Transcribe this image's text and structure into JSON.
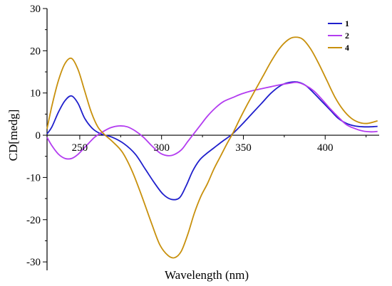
{
  "chart_data": {
    "type": "line",
    "xlabel": "Wavelength (nm)",
    "ylabel": "CD[medg]",
    "xlim": [
      230,
      433
    ],
    "ylim": [
      -32,
      30
    ],
    "x_ticks": [
      250,
      300,
      350,
      400
    ],
    "y_ticks": [
      -30,
      -20,
      -10,
      0,
      10,
      20,
      30
    ],
    "x_tick_labels": [
      "250",
      "300",
      "350",
      "400"
    ],
    "y_tick_labels": [
      "-30",
      "-20",
      "-10",
      "0",
      "10",
      "20",
      "30"
    ],
    "grid": false,
    "legend_position": "top-right",
    "series": [
      {
        "name": "1",
        "color": "#1f1fcc",
        "points": [
          [
            230,
            0.3
          ],
          [
            233,
            2
          ],
          [
            237,
            5.5
          ],
          [
            241,
            8.2
          ],
          [
            245,
            9.3
          ],
          [
            249,
            7.5
          ],
          [
            253,
            4.0
          ],
          [
            258,
            1.5
          ],
          [
            263,
            0.3
          ],
          [
            270,
            -0.5
          ],
          [
            277,
            -2.0
          ],
          [
            284,
            -4.5
          ],
          [
            290,
            -8.0
          ],
          [
            296,
            -11.5
          ],
          [
            301,
            -14.0
          ],
          [
            306,
            -15.2
          ],
          [
            311,
            -14.8
          ],
          [
            315,
            -12.0
          ],
          [
            319,
            -8.5
          ],
          [
            323,
            -6.0
          ],
          [
            327,
            -4.5
          ],
          [
            332,
            -3.0
          ],
          [
            337,
            -1.5
          ],
          [
            343,
            0.2
          ],
          [
            349,
            2.5
          ],
          [
            355,
            5.0
          ],
          [
            361,
            7.5
          ],
          [
            367,
            10.0
          ],
          [
            373,
            11.8
          ],
          [
            378,
            12.5
          ],
          [
            383,
            12.6
          ],
          [
            388,
            11.8
          ],
          [
            393,
            10.0
          ],
          [
            398,
            8.0
          ],
          [
            403,
            6.0
          ],
          [
            408,
            4.0
          ],
          [
            413,
            2.8
          ],
          [
            418,
            2.2
          ],
          [
            423,
            2.0
          ],
          [
            428,
            2.0
          ],
          [
            432,
            2.1
          ]
        ]
      },
      {
        "name": "2",
        "color": "#b33cf0",
        "points": [
          [
            230,
            -0.5
          ],
          [
            233,
            -2.5
          ],
          [
            237,
            -4.5
          ],
          [
            241,
            -5.5
          ],
          [
            245,
            -5.5
          ],
          [
            249,
            -4.5
          ],
          [
            254,
            -2.5
          ],
          [
            259,
            -0.5
          ],
          [
            264,
            0.8
          ],
          [
            269,
            1.8
          ],
          [
            274,
            2.2
          ],
          [
            279,
            2.0
          ],
          [
            284,
            1.0
          ],
          [
            289,
            -0.5
          ],
          [
            294,
            -2.5
          ],
          [
            299,
            -4.2
          ],
          [
            303,
            -4.8
          ],
          [
            307,
            -4.7
          ],
          [
            312,
            -3.5
          ],
          [
            316,
            -1.5
          ],
          [
            320,
            0.5
          ],
          [
            324,
            2.5
          ],
          [
            328,
            4.5
          ],
          [
            333,
            6.5
          ],
          [
            338,
            8.0
          ],
          [
            344,
            9.0
          ],
          [
            349,
            9.8
          ],
          [
            355,
            10.5
          ],
          [
            361,
            11.0
          ],
          [
            367,
            11.5
          ],
          [
            373,
            12.0
          ],
          [
            378,
            12.3
          ],
          [
            383,
            12.5
          ],
          [
            388,
            11.8
          ],
          [
            393,
            10.5
          ],
          [
            398,
            8.5
          ],
          [
            403,
            6.3
          ],
          [
            408,
            4.3
          ],
          [
            413,
            2.5
          ],
          [
            418,
            1.6
          ],
          [
            423,
            1.0
          ],
          [
            428,
            0.8
          ],
          [
            432,
            0.9
          ]
        ]
      },
      {
        "name": "4",
        "color": "#c8900c",
        "points": [
          [
            230,
            1.5
          ],
          [
            233,
            7
          ],
          [
            237,
            13
          ],
          [
            241,
            17
          ],
          [
            245,
            18.2
          ],
          [
            249,
            15.5
          ],
          [
            253,
            10.5
          ],
          [
            257,
            5.5
          ],
          [
            261,
            2.0
          ],
          [
            265,
            0.2
          ],
          [
            270,
            -1.5
          ],
          [
            276,
            -4.0
          ],
          [
            282,
            -8.5
          ],
          [
            288,
            -14.5
          ],
          [
            294,
            -21.0
          ],
          [
            299,
            -26.0
          ],
          [
            304,
            -28.5
          ],
          [
            308,
            -29.0
          ],
          [
            312,
            -27.5
          ],
          [
            316,
            -23.5
          ],
          [
            320,
            -18.5
          ],
          [
            324,
            -14.5
          ],
          [
            328,
            -11.5
          ],
          [
            332,
            -8.0
          ],
          [
            336,
            -5.0
          ],
          [
            340,
            -2.0
          ],
          [
            344,
            0.8
          ],
          [
            348,
            4.0
          ],
          [
            352,
            7.0
          ],
          [
            357,
            10.5
          ],
          [
            362,
            14.0
          ],
          [
            367,
            17.5
          ],
          [
            372,
            20.5
          ],
          [
            377,
            22.5
          ],
          [
            381,
            23.2
          ],
          [
            386,
            22.8
          ],
          [
            391,
            20.5
          ],
          [
            396,
            17.0
          ],
          [
            401,
            13.0
          ],
          [
            406,
            9.0
          ],
          [
            411,
            6.0
          ],
          [
            416,
            4.0
          ],
          [
            421,
            3.0
          ],
          [
            426,
            2.8
          ],
          [
            432,
            3.4
          ]
        ]
      }
    ]
  }
}
